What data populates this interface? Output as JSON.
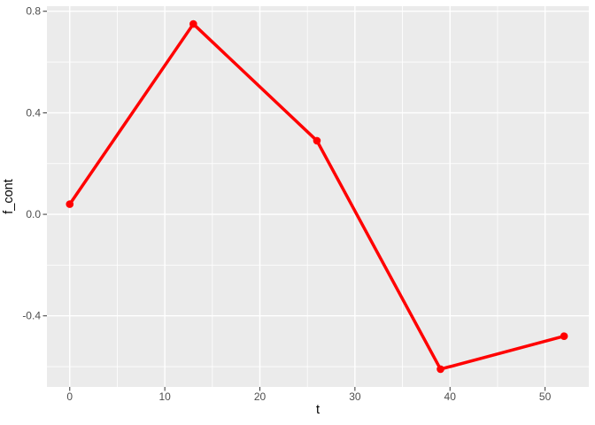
{
  "chart_data": {
    "type": "line",
    "title": "",
    "xlabel": "t",
    "ylabel": "f_cont",
    "x": [
      0,
      13,
      26,
      39,
      52
    ],
    "y": [
      0.04,
      0.75,
      0.29,
      -0.61,
      -0.48
    ],
    "series": [
      {
        "name": "f_cont",
        "x": [
          0,
          13,
          26,
          39,
          52
        ],
        "values": [
          0.04,
          0.75,
          0.29,
          -0.61,
          -0.48
        ]
      }
    ],
    "xlim": [
      -2.4,
      54.6
    ],
    "ylim": [
      -0.68,
      0.82
    ],
    "x_major_ticks": [
      0,
      10,
      20,
      30,
      40,
      50
    ],
    "x_tick_labels": [
      "0",
      "10",
      "20",
      "30",
      "40",
      "50"
    ],
    "x_minor_ticks": [
      5,
      15,
      25,
      35,
      45
    ],
    "y_major_ticks": [
      0.8,
      0.4,
      0.0,
      -0.4
    ],
    "y_tick_labels": [
      "0.8",
      "0.4",
      "0.0",
      "-0.4"
    ],
    "y_minor_ticks": [
      0.6,
      0.2,
      -0.2,
      -0.6
    ],
    "grid": "major-and-minor",
    "legend_position": "none",
    "style": "ggplot2-grey-theme",
    "marker": "filled-circle",
    "colors": {
      "line": "#FF0000",
      "point": "#FF0000",
      "panel_background": "#EBEBEB",
      "grid": "#FFFFFF",
      "tick_text": "#4D4D4D",
      "tick_mark": "#333333",
      "axis_title": "#000000",
      "figure_background": "#FFFFFF"
    }
  }
}
